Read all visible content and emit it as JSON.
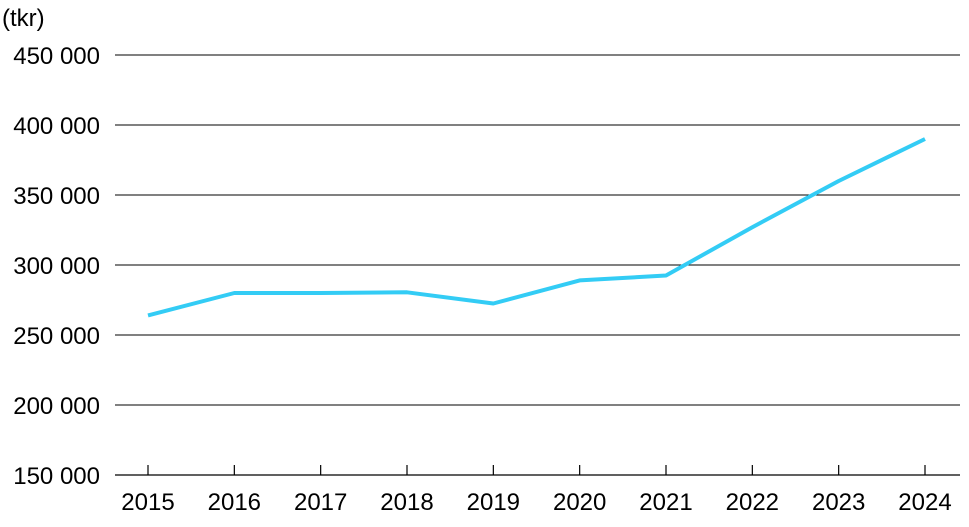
{
  "chart_data": {
    "type": "line",
    "title": "",
    "xlabel": "",
    "ylabel": "(tkr)",
    "x": [
      "2015",
      "2016",
      "2017",
      "2018",
      "2019",
      "2020",
      "2021",
      "2022",
      "2023",
      "2024"
    ],
    "series": [
      {
        "values": [
          264000,
          280000,
          280000,
          280500,
          272500,
          289000,
          292500,
          327000,
          360000,
          390000
        ],
        "color": "#33ccf5"
      }
    ],
    "ylim": [
      150000,
      450000
    ],
    "yticks": [
      150000,
      200000,
      250000,
      300000,
      350000,
      400000,
      450000
    ],
    "ytick_labels": [
      "150 000",
      "200 000",
      "250 000",
      "300 000",
      "350 000",
      "400 000",
      "450 000"
    ],
    "grid": "horizontal",
    "gridline_color": "#000000",
    "line_color": "#33ccf5"
  }
}
